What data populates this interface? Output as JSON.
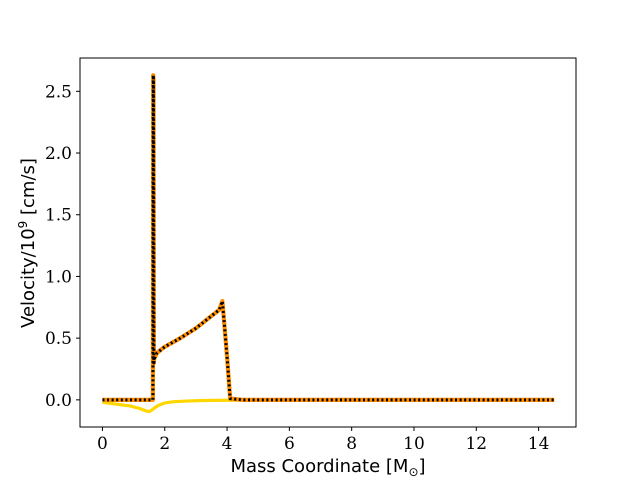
{
  "chart_data": {
    "type": "line",
    "xlabel": "Mass Coordinate [M",
    "xlabel_sub": "⊙",
    "xlabel_end": "]",
    "ylabel": "Velocity/10",
    "ylabel_sup": "9",
    "ylabel_end": " [cm/s]",
    "xlim": [
      -0.72,
      15.2
    ],
    "ylim": [
      -0.22,
      2.77
    ],
    "xticks": [
      0,
      2,
      4,
      6,
      8,
      10,
      12,
      14
    ],
    "xtick_labels": [
      "0",
      "2",
      "4",
      "6",
      "8",
      "10",
      "12",
      "14"
    ],
    "yticks": [
      0.0,
      0.5,
      1.0,
      1.5,
      2.0,
      2.5
    ],
    "ytick_labels": [
      "0.0",
      "0.5",
      "1.0",
      "1.5",
      "2.0",
      "2.5"
    ],
    "grid": false,
    "series": [
      {
        "color": "#ffd700",
        "style": "solid",
        "x": [
          0.0,
          0.3,
          0.6,
          0.9,
          1.2,
          1.4,
          1.5,
          1.6,
          1.7,
          1.8,
          2.0,
          2.3,
          2.7,
          3.2,
          4.0,
          5.0,
          14.5
        ],
        "y": [
          -0.02,
          -0.03,
          -0.04,
          -0.05,
          -0.07,
          -0.09,
          -0.095,
          -0.08,
          -0.06,
          -0.045,
          -0.025,
          -0.015,
          -0.01,
          -0.005,
          -0.003,
          -0.002,
          0.0
        ]
      },
      {
        "color": "#ff8c00",
        "style": "solid",
        "x": [
          0.0,
          1.62,
          1.63,
          1.64,
          1.65,
          1.66,
          1.75,
          2.0,
          2.5,
          3.0,
          3.6,
          3.75,
          3.85,
          4.0,
          4.1,
          4.5,
          14.5
        ],
        "y": [
          0.0,
          0.0,
          2.63,
          2.6,
          0.3,
          0.33,
          0.38,
          0.43,
          0.5,
          0.58,
          0.7,
          0.73,
          0.8,
          0.35,
          0.01,
          0.0,
          0.0
        ]
      },
      {
        "color": "#000000",
        "style": "dotted",
        "x": [
          0.0,
          1.62,
          1.63,
          1.64,
          1.65,
          1.66,
          1.75,
          2.0,
          2.5,
          3.0,
          3.6,
          3.75,
          3.85,
          4.0,
          4.1,
          4.5,
          14.5
        ],
        "y": [
          0.0,
          0.0,
          2.63,
          2.6,
          0.3,
          0.33,
          0.38,
          0.43,
          0.5,
          0.58,
          0.7,
          0.73,
          0.8,
          0.35,
          0.01,
          0.0,
          0.0
        ]
      }
    ]
  }
}
